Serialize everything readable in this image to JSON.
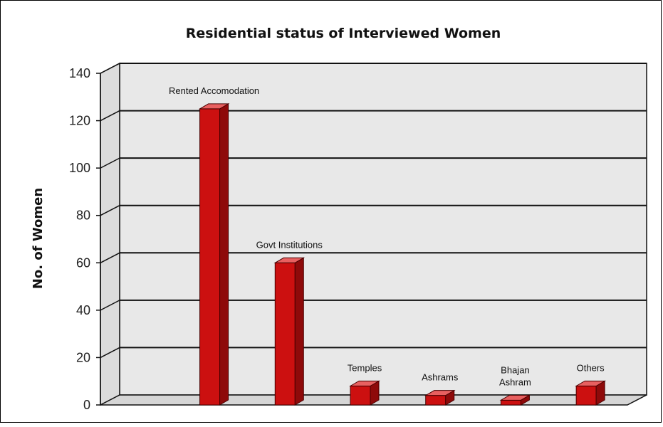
{
  "chart_data": {
    "type": "bar",
    "title": "Residential status of Interviewed Women",
    "ylabel": "No. of Women",
    "xlabel": "",
    "ylim": [
      0,
      140
    ],
    "yticks": [
      0,
      20,
      40,
      60,
      80,
      100,
      120,
      140
    ],
    "categories": [
      "Rented Accomodation",
      "Govt Institutions",
      "Temples",
      "Ashrams",
      "Bhajan Ashram",
      "Others"
    ],
    "values": [
      125,
      60,
      8,
      4,
      2,
      8
    ],
    "label_lines": [
      [
        "Rented Accomodation"
      ],
      [
        "Govt Institutions"
      ],
      [
        "Temples"
      ],
      [
        "Ashrams"
      ],
      [
        "Bhajan",
        "Ashram"
      ],
      [
        "Others"
      ]
    ],
    "grid": true,
    "style": "3d",
    "colors": {
      "bar_front": "#cc1010",
      "bar_side": "#8e0a0a",
      "bar_top": "#e86060",
      "wall": "#e8e8e8",
      "floor": "#d6d6d6",
      "gridline": "#111111"
    }
  }
}
